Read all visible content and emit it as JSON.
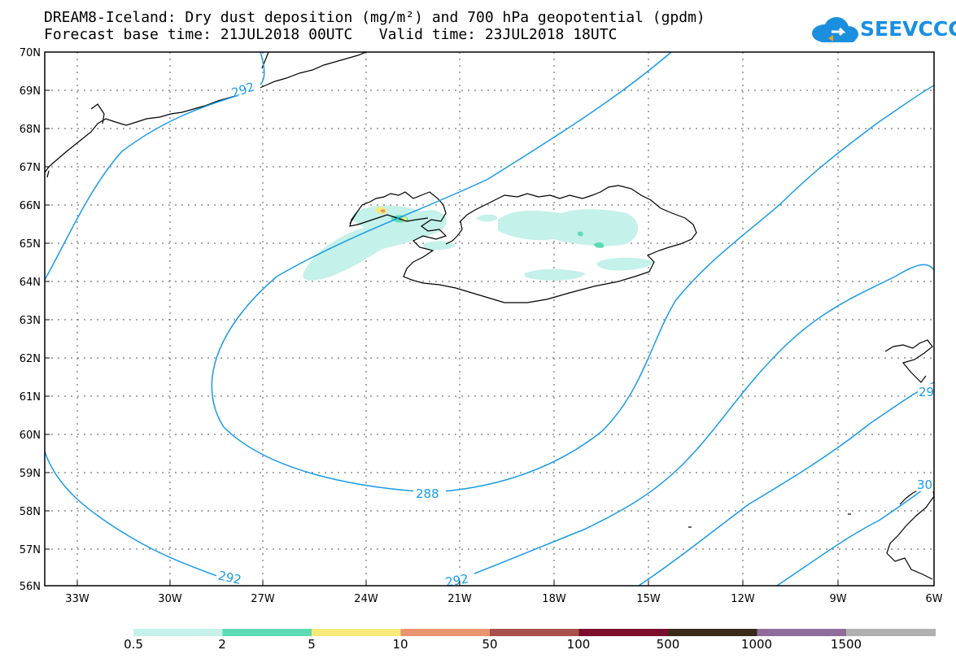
{
  "title": {
    "line1": "DREAM8-Iceland: Dry dust deposition (mg/m²) and 700 hPa geopotential (gpdm)",
    "line2": "Forecast base time: 21JUL2018 00UTC   Valid time: 23JUL2018 18UTC"
  },
  "logo": {
    "text": "SEEVCCC",
    "color": "#1a8fe0"
  },
  "map": {
    "lat_labels": [
      "70N",
      "69N",
      "68N",
      "67N",
      "66N",
      "65N",
      "64N",
      "63N",
      "62N",
      "61N",
      "60N",
      "59N",
      "58N",
      "57N",
      "56N"
    ],
    "lon_labels": [
      "33W",
      "30W",
      "27W",
      "24W",
      "21W",
      "18W",
      "15W",
      "12W",
      "9W",
      "6W"
    ],
    "lat_range": [
      56,
      70
    ],
    "lon_range": [
      -34.5,
      -6
    ],
    "contour_color": "#1a9be6",
    "contour_labels": [
      "292",
      "288",
      "292",
      "292",
      "29",
      "30"
    ]
  },
  "legend": {
    "thresholds": [
      "0.5",
      "2",
      "5",
      "10",
      "50",
      "100",
      "500",
      "1000",
      "1500"
    ],
    "colors": [
      "#c4f1e9",
      "#5ddbb4",
      "#f7ea79",
      "#ea9470",
      "#a8504a",
      "#7a0e2c",
      "#3a2a1a",
      "#8f6c9b",
      "#b0b0b0"
    ]
  }
}
